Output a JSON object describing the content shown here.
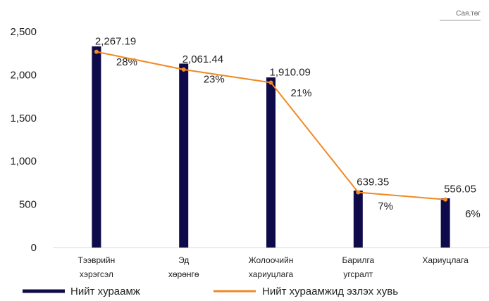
{
  "unit_label": "Сая.төг",
  "colors": {
    "bar": "#0f0b4a",
    "line": "#f08a24",
    "axis": "#d9d9d9"
  },
  "chart_data": {
    "type": "bar",
    "categories": [
      [
        "Тээврийн",
        "хэрэгсэл"
      ],
      [
        "Эд",
        "хөрөнгө"
      ],
      [
        "Жолоочийн",
        "хариуцлага"
      ],
      [
        "Барилга",
        "угсралт"
      ],
      [
        "Хариуцлага"
      ]
    ],
    "ylim": [
      0,
      2500
    ],
    "yticks": [
      "0",
      "500",
      "1,000",
      "1,500",
      "2,000",
      "2,500"
    ],
    "grid": false,
    "legend_position": "bottom",
    "series": [
      {
        "name": "Нийт хураамж",
        "type": "bar",
        "values": [
          2330,
          2130,
          1970,
          660,
          570
        ],
        "labels": [
          "28%",
          "23%",
          "21%",
          "7%",
          "6%"
        ]
      },
      {
        "name": "Нийт хураамжид эзлэх хувь",
        "type": "line",
        "values": [
          2267.19,
          2061.44,
          1910.09,
          639.35,
          556.05
        ],
        "labels": [
          "2,267.19",
          "2,061.44",
          "1,910.09",
          "639.35",
          "556.05"
        ]
      }
    ]
  }
}
